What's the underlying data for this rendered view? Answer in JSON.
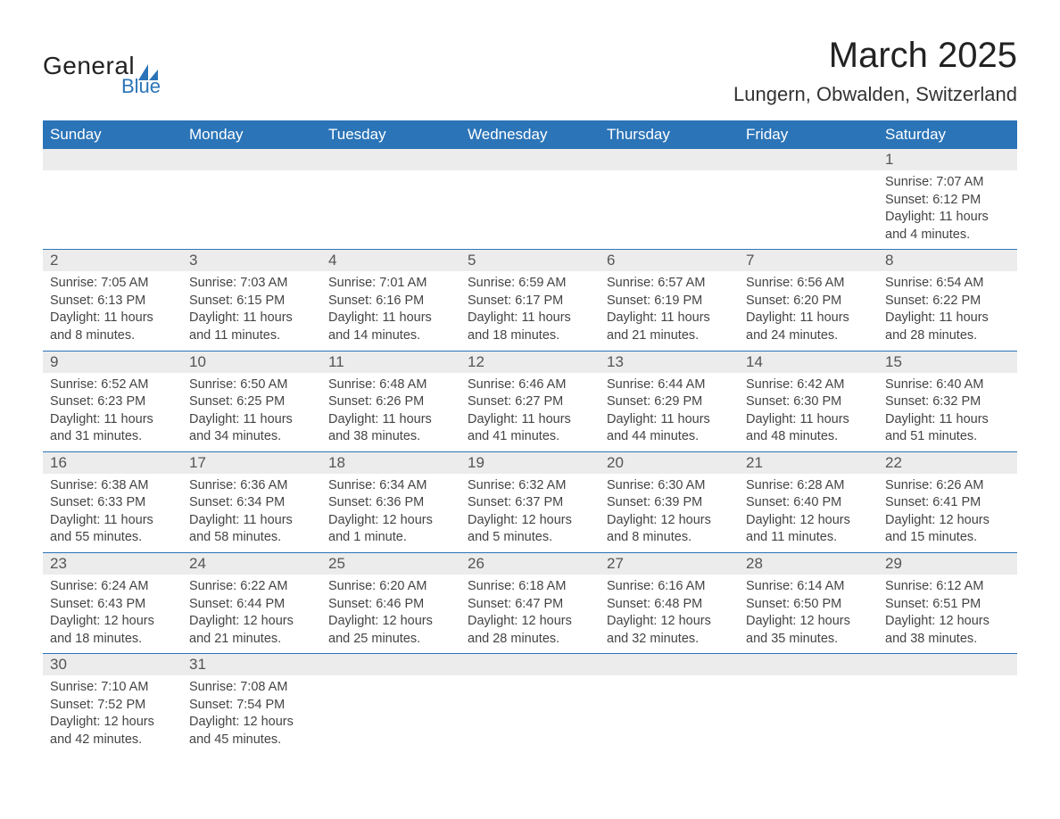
{
  "logo": {
    "text1": "General",
    "text2": "Blue",
    "sail_color": "#2b74b8"
  },
  "title": "March 2025",
  "location": "Lungern, Obwalden, Switzerland",
  "colors": {
    "header_bg": "#2b74b8",
    "header_text": "#ffffff",
    "daynum_bg": "#ececec",
    "row_border": "#2b74b8",
    "body_text": "#444444"
  },
  "day_names": [
    "Sunday",
    "Monday",
    "Tuesday",
    "Wednesday",
    "Thursday",
    "Friday",
    "Saturday"
  ],
  "weeks": [
    [
      null,
      null,
      null,
      null,
      null,
      null,
      {
        "d": "1",
        "sunrise": "7:07 AM",
        "sunset": "6:12 PM",
        "daylight": "11 hours and 4 minutes."
      }
    ],
    [
      {
        "d": "2",
        "sunrise": "7:05 AM",
        "sunset": "6:13 PM",
        "daylight": "11 hours and 8 minutes."
      },
      {
        "d": "3",
        "sunrise": "7:03 AM",
        "sunset": "6:15 PM",
        "daylight": "11 hours and 11 minutes."
      },
      {
        "d": "4",
        "sunrise": "7:01 AM",
        "sunset": "6:16 PM",
        "daylight": "11 hours and 14 minutes."
      },
      {
        "d": "5",
        "sunrise": "6:59 AM",
        "sunset": "6:17 PM",
        "daylight": "11 hours and 18 minutes."
      },
      {
        "d": "6",
        "sunrise": "6:57 AM",
        "sunset": "6:19 PM",
        "daylight": "11 hours and 21 minutes."
      },
      {
        "d": "7",
        "sunrise": "6:56 AM",
        "sunset": "6:20 PM",
        "daylight": "11 hours and 24 minutes."
      },
      {
        "d": "8",
        "sunrise": "6:54 AM",
        "sunset": "6:22 PM",
        "daylight": "11 hours and 28 minutes."
      }
    ],
    [
      {
        "d": "9",
        "sunrise": "6:52 AM",
        "sunset": "6:23 PM",
        "daylight": "11 hours and 31 minutes."
      },
      {
        "d": "10",
        "sunrise": "6:50 AM",
        "sunset": "6:25 PM",
        "daylight": "11 hours and 34 minutes."
      },
      {
        "d": "11",
        "sunrise": "6:48 AM",
        "sunset": "6:26 PM",
        "daylight": "11 hours and 38 minutes."
      },
      {
        "d": "12",
        "sunrise": "6:46 AM",
        "sunset": "6:27 PM",
        "daylight": "11 hours and 41 minutes."
      },
      {
        "d": "13",
        "sunrise": "6:44 AM",
        "sunset": "6:29 PM",
        "daylight": "11 hours and 44 minutes."
      },
      {
        "d": "14",
        "sunrise": "6:42 AM",
        "sunset": "6:30 PM",
        "daylight": "11 hours and 48 minutes."
      },
      {
        "d": "15",
        "sunrise": "6:40 AM",
        "sunset": "6:32 PM",
        "daylight": "11 hours and 51 minutes."
      }
    ],
    [
      {
        "d": "16",
        "sunrise": "6:38 AM",
        "sunset": "6:33 PM",
        "daylight": "11 hours and 55 minutes."
      },
      {
        "d": "17",
        "sunrise": "6:36 AM",
        "sunset": "6:34 PM",
        "daylight": "11 hours and 58 minutes."
      },
      {
        "d": "18",
        "sunrise": "6:34 AM",
        "sunset": "6:36 PM",
        "daylight": "12 hours and 1 minute."
      },
      {
        "d": "19",
        "sunrise": "6:32 AM",
        "sunset": "6:37 PM",
        "daylight": "12 hours and 5 minutes."
      },
      {
        "d": "20",
        "sunrise": "6:30 AM",
        "sunset": "6:39 PM",
        "daylight": "12 hours and 8 minutes."
      },
      {
        "d": "21",
        "sunrise": "6:28 AM",
        "sunset": "6:40 PM",
        "daylight": "12 hours and 11 minutes."
      },
      {
        "d": "22",
        "sunrise": "6:26 AM",
        "sunset": "6:41 PM",
        "daylight": "12 hours and 15 minutes."
      }
    ],
    [
      {
        "d": "23",
        "sunrise": "6:24 AM",
        "sunset": "6:43 PM",
        "daylight": "12 hours and 18 minutes."
      },
      {
        "d": "24",
        "sunrise": "6:22 AM",
        "sunset": "6:44 PM",
        "daylight": "12 hours and 21 minutes."
      },
      {
        "d": "25",
        "sunrise": "6:20 AM",
        "sunset": "6:46 PM",
        "daylight": "12 hours and 25 minutes."
      },
      {
        "d": "26",
        "sunrise": "6:18 AM",
        "sunset": "6:47 PM",
        "daylight": "12 hours and 28 minutes."
      },
      {
        "d": "27",
        "sunrise": "6:16 AM",
        "sunset": "6:48 PM",
        "daylight": "12 hours and 32 minutes."
      },
      {
        "d": "28",
        "sunrise": "6:14 AM",
        "sunset": "6:50 PM",
        "daylight": "12 hours and 35 minutes."
      },
      {
        "d": "29",
        "sunrise": "6:12 AM",
        "sunset": "6:51 PM",
        "daylight": "12 hours and 38 minutes."
      }
    ],
    [
      {
        "d": "30",
        "sunrise": "7:10 AM",
        "sunset": "7:52 PM",
        "daylight": "12 hours and 42 minutes."
      },
      {
        "d": "31",
        "sunrise": "7:08 AM",
        "sunset": "7:54 PM",
        "daylight": "12 hours and 45 minutes."
      },
      null,
      null,
      null,
      null,
      null
    ]
  ],
  "labels": {
    "sunrise": "Sunrise: ",
    "sunset": "Sunset: ",
    "daylight": "Daylight: "
  }
}
